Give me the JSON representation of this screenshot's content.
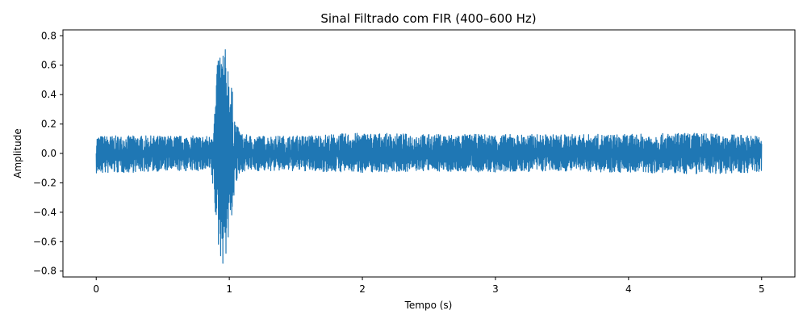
{
  "chart_data": {
    "type": "line",
    "title": "Sinal Filtrado com FIR (400–600 Hz)",
    "xlabel": "Tempo (s)",
    "ylabel": "Amplitude",
    "xlim": [
      -0.25,
      5.25
    ],
    "ylim": [
      -0.84,
      0.84
    ],
    "x_ticks": [
      0,
      1,
      2,
      3,
      4,
      5
    ],
    "y_ticks": [
      -0.8,
      -0.6,
      -0.4,
      -0.2,
      0.0,
      0.2,
      0.4,
      0.6,
      0.8
    ],
    "x_tick_labels": [
      "0",
      "1",
      "2",
      "3",
      "4",
      "5"
    ],
    "y_tick_labels": [
      "−0.8",
      "−0.6",
      "−0.4",
      "−0.2",
      "0.0",
      "0.2",
      "0.4",
      "0.6",
      "0.8"
    ],
    "grid": false,
    "series": [
      {
        "color": "#1f77b4",
        "envelope": {
          "x": [
            0,
            0.5,
            0.85,
            0.88,
            0.9,
            0.92,
            0.95,
            0.98,
            1.0,
            1.02,
            1.05,
            1.1,
            1.2,
            1.5,
            2.0,
            2.5,
            3.0,
            3.5,
            4.0,
            4.5,
            5.0
          ],
          "max": [
            0.12,
            0.12,
            0.12,
            0.2,
            0.45,
            0.75,
            0.75,
            0.7,
            0.62,
            0.45,
            0.2,
            0.13,
            0.12,
            0.12,
            0.14,
            0.13,
            0.13,
            0.13,
            0.13,
            0.14,
            0.12
          ],
          "min": [
            -0.14,
            -0.12,
            -0.12,
            -0.25,
            -0.5,
            -0.68,
            -0.76,
            -0.7,
            -0.6,
            -0.42,
            -0.22,
            -0.12,
            -0.12,
            -0.12,
            -0.13,
            -0.12,
            -0.13,
            -0.12,
            -0.13,
            -0.14,
            -0.13
          ]
        }
      }
    ]
  }
}
